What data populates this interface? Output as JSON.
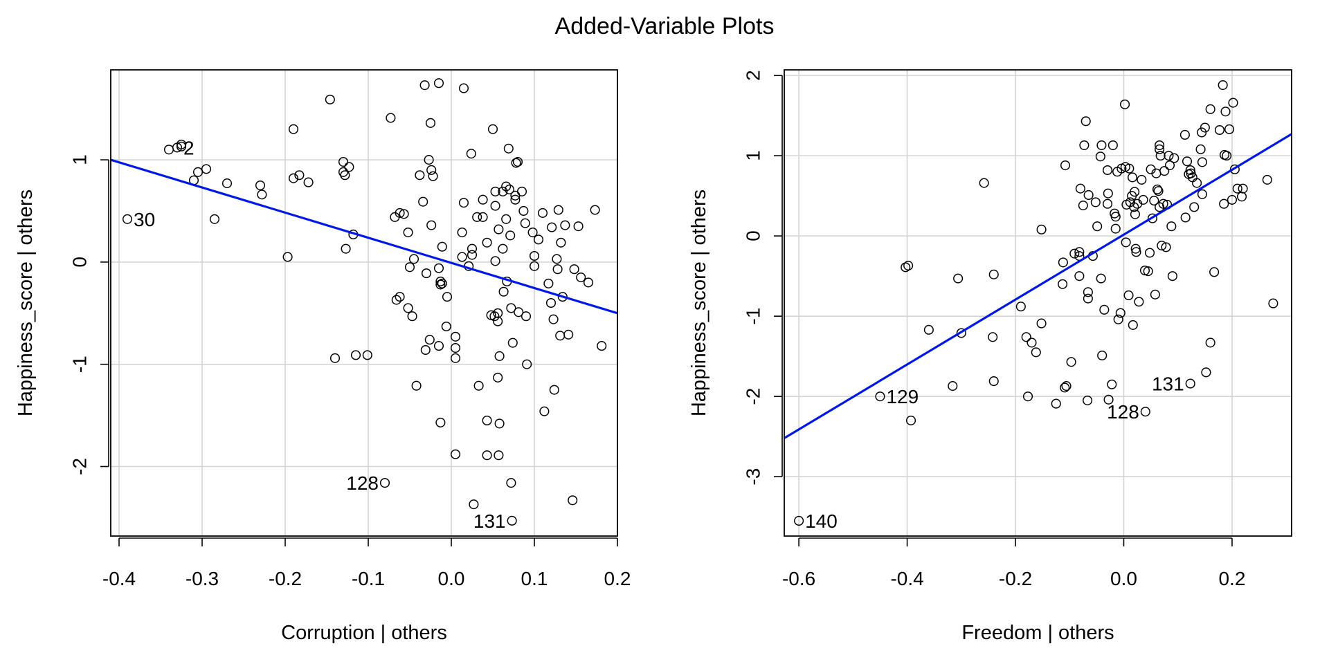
{
  "title": "Added-Variable Plots",
  "colors": {
    "line": "#0019e6",
    "grid": "#d3d3d3",
    "point": "#000000",
    "frame": "#000000"
  },
  "chart_data": [
    {
      "type": "scatter",
      "id": "left",
      "xlabel": "Corruption | others",
      "ylabel": "Happiness_score  | others",
      "xlim": [
        -0.41,
        0.2
      ],
      "ylim": [
        -2.68,
        1.88
      ],
      "xticks": [
        -0.4,
        -0.3,
        -0.2,
        -0.1,
        0.0,
        0.1,
        0.2
      ],
      "xtick_labels": [
        "-0.4",
        "-0.3",
        "-0.2",
        "-0.1",
        "0.0",
        "0.1",
        "0.2"
      ],
      "yticks": [
        -2,
        -1,
        0,
        1
      ],
      "ytick_labels": [
        "-2",
        "-1",
        "0",
        "1"
      ],
      "grid": true,
      "fit_line": {
        "x": [
          -0.41,
          0.2
        ],
        "y": [
          1.0,
          -0.5
        ]
      },
      "labeled_points": [
        {
          "label": "30",
          "x": -0.39,
          "y": 0.42,
          "side": "right"
        },
        {
          "label": "128",
          "x": -0.08,
          "y": -2.16,
          "side": "left"
        },
        {
          "label": "131",
          "x": 0.073,
          "y": -2.53,
          "side": "left"
        },
        {
          "label": "2",
          "x": -0.33,
          "y": 1.12,
          "side": "right"
        }
      ],
      "points": [
        [
          -0.34,
          1.1
        ],
        [
          -0.325,
          1.15
        ],
        [
          -0.325,
          1.13
        ],
        [
          -0.31,
          0.8
        ],
        [
          -0.305,
          0.88
        ],
        [
          -0.295,
          0.91
        ],
        [
          -0.27,
          0.77
        ],
        [
          -0.285,
          0.42
        ],
        [
          -0.23,
          0.75
        ],
        [
          -0.228,
          0.66
        ],
        [
          -0.19,
          1.3
        ],
        [
          -0.19,
          0.82
        ],
        [
          -0.183,
          0.85
        ],
        [
          -0.172,
          0.78
        ],
        [
          -0.197,
          0.05
        ],
        [
          -0.146,
          1.59
        ],
        [
          -0.13,
          0.98
        ],
        [
          -0.13,
          0.88
        ],
        [
          -0.128,
          0.85
        ],
        [
          -0.123,
          0.93
        ],
        [
          -0.118,
          0.27
        ],
        [
          -0.127,
          0.13
        ],
        [
          -0.14,
          -0.94
        ],
        [
          -0.115,
          -0.91
        ],
        [
          -0.101,
          -0.91
        ],
        [
          -0.073,
          1.41
        ],
        [
          -0.068,
          0.44
        ],
        [
          -0.062,
          0.48
        ],
        [
          -0.057,
          0.47
        ],
        [
          -0.066,
          -0.37
        ],
        [
          -0.062,
          -0.34
        ],
        [
          -0.052,
          -0.45
        ],
        [
          -0.047,
          -0.53
        ],
        [
          -0.05,
          -0.05
        ],
        [
          -0.045,
          0.03
        ],
        [
          -0.052,
          0.29
        ],
        [
          -0.038,
          0.85
        ],
        [
          -0.034,
          0.59
        ],
        [
          -0.032,
          1.73
        ],
        [
          -0.027,
          1.0
        ],
        [
          -0.024,
          0.9
        ],
        [
          -0.022,
          0.84
        ],
        [
          -0.025,
          1.36
        ],
        [
          -0.015,
          1.75
        ],
        [
          -0.024,
          0.36
        ],
        [
          -0.03,
          -0.11
        ],
        [
          -0.031,
          -0.86
        ],
        [
          -0.026,
          -0.76
        ],
        [
          -0.042,
          -1.21
        ],
        [
          -0.013,
          -0.19
        ],
        [
          -0.013,
          -0.22
        ],
        [
          -0.011,
          -0.21
        ],
        [
          -0.015,
          -0.06
        ],
        [
          -0.011,
          0.15
        ],
        [
          -0.015,
          -0.82
        ],
        [
          -0.013,
          -1.57
        ],
        [
          -0.005,
          -0.34
        ],
        [
          -0.006,
          -0.63
        ],
        [
          0.005,
          -0.73
        ],
        [
          0.005,
          -0.84
        ],
        [
          0.005,
          -0.94
        ],
        [
          0.005,
          -1.88
        ],
        [
          0.013,
          0.29
        ],
        [
          0.013,
          0.05
        ],
        [
          0.015,
          1.7
        ],
        [
          0.015,
          0.58
        ],
        [
          0.021,
          -0.04
        ],
        [
          0.024,
          1.06
        ],
        [
          0.025,
          0.07
        ],
        [
          0.025,
          0.13
        ],
        [
          0.031,
          0.44
        ],
        [
          0.033,
          -1.21
        ],
        [
          0.027,
          -2.37
        ],
        [
          0.038,
          0.61
        ],
        [
          0.038,
          0.44
        ],
        [
          0.043,
          0.19
        ],
        [
          0.043,
          -1.55
        ],
        [
          0.043,
          -1.89
        ],
        [
          0.048,
          -0.52
        ],
        [
          0.052,
          -0.53
        ],
        [
          0.05,
          1.3
        ],
        [
          0.053,
          0.69
        ],
        [
          0.053,
          0.55
        ],
        [
          0.053,
          0.01
        ],
        [
          0.056,
          -0.5
        ],
        [
          0.056,
          -0.58
        ],
        [
          0.056,
          -1.13
        ],
        [
          0.057,
          0.32
        ],
        [
          0.058,
          -0.92
        ],
        [
          0.058,
          -1.58
        ],
        [
          0.057,
          -1.89
        ],
        [
          0.062,
          0.69
        ],
        [
          0.062,
          0.13
        ],
        [
          0.063,
          -0.29
        ],
        [
          0.066,
          0.74
        ],
        [
          0.066,
          0.42
        ],
        [
          0.067,
          -0.19
        ],
        [
          0.069,
          1.11
        ],
        [
          0.07,
          0.71
        ],
        [
          0.071,
          0.26
        ],
        [
          0.072,
          -0.45
        ],
        [
          0.072,
          -2.16
        ],
        [
          0.074,
          -0.79
        ],
        [
          0.077,
          0.65
        ],
        [
          0.077,
          0.61
        ],
        [
          0.078,
          0.97
        ],
        [
          0.08,
          0.98
        ],
        [
          0.081,
          -0.49
        ],
        [
          0.085,
          0.69
        ],
        [
          0.087,
          0.5
        ],
        [
          0.089,
          0.38
        ],
        [
          0.09,
          -0.53
        ],
        [
          0.091,
          -1.0
        ],
        [
          0.098,
          0.29
        ],
        [
          0.1,
          0.06
        ],
        [
          0.1,
          -0.04
        ],
        [
          0.105,
          0.22
        ],
        [
          0.11,
          0.48
        ],
        [
          0.112,
          -1.46
        ],
        [
          0.117,
          -0.21
        ],
        [
          0.12,
          -0.4
        ],
        [
          0.121,
          0.34
        ],
        [
          0.123,
          -0.56
        ],
        [
          0.124,
          -1.25
        ],
        [
          0.127,
          0.03
        ],
        [
          0.128,
          -0.07
        ],
        [
          0.129,
          0.51
        ],
        [
          0.131,
          -0.72
        ],
        [
          0.132,
          0.19
        ],
        [
          0.134,
          -0.34
        ],
        [
          0.137,
          0.36
        ],
        [
          0.141,
          -0.71
        ],
        [
          0.146,
          -2.33
        ],
        [
          0.148,
          -0.07
        ],
        [
          0.153,
          0.35
        ],
        [
          0.156,
          -0.15
        ],
        [
          0.165,
          -0.2
        ],
        [
          0.173,
          0.51
        ],
        [
          0.181,
          -0.82
        ]
      ]
    },
    {
      "type": "scatter",
      "id": "right",
      "xlabel": "Freedom | others",
      "ylabel": "Happiness_score  | others",
      "xlim": [
        -0.627,
        0.31
      ],
      "ylim": [
        -3.74,
        2.07
      ],
      "xticks": [
        -0.6,
        -0.4,
        -0.2,
        0.0,
        0.2
      ],
      "xtick_labels": [
        "-0.6",
        "-0.4",
        "-0.2",
        "0.0",
        "0.2"
      ],
      "yticks": [
        -3,
        -2,
        -1,
        0,
        1,
        2
      ],
      "ytick_labels": [
        "-3",
        "-2",
        "-1",
        "0",
        "1",
        "2"
      ],
      "grid": true,
      "fit_line": {
        "x": [
          -0.627,
          0.31
        ],
        "y": [
          -2.52,
          1.27
        ]
      },
      "labeled_points": [
        {
          "label": "140",
          "x": -0.6,
          "y": -3.55,
          "side": "right"
        },
        {
          "label": "129",
          "x": -0.45,
          "y": -2.0,
          "side": "right"
        },
        {
          "label": "128",
          "x": 0.04,
          "y": -2.19,
          "side": "left"
        },
        {
          "label": "131",
          "x": 0.123,
          "y": -1.84,
          "side": "left"
        }
      ],
      "points": [
        [
          -0.403,
          -0.39
        ],
        [
          -0.398,
          -0.37
        ],
        [
          -0.393,
          -2.3
        ],
        [
          -0.36,
          -1.17
        ],
        [
          -0.3,
          -1.21
        ],
        [
          -0.306,
          -0.53
        ],
        [
          -0.316,
          -1.87
        ],
        [
          -0.258,
          0.66
        ],
        [
          -0.24,
          -0.48
        ],
        [
          -0.242,
          -1.26
        ],
        [
          -0.24,
          -1.81
        ],
        [
          -0.19,
          -0.88
        ],
        [
          -0.18,
          -1.26
        ],
        [
          -0.177,
          -2.0
        ],
        [
          -0.17,
          -1.33
        ],
        [
          -0.162,
          -1.45
        ],
        [
          -0.152,
          0.08
        ],
        [
          -0.152,
          -1.09
        ],
        [
          -0.125,
          -2.09
        ],
        [
          -0.113,
          -0.6
        ],
        [
          -0.112,
          -0.33
        ],
        [
          -0.109,
          -1.89
        ],
        [
          -0.106,
          -1.87
        ],
        [
          -0.108,
          0.88
        ],
        [
          -0.097,
          -1.57
        ],
        [
          -0.091,
          -0.22
        ],
        [
          -0.082,
          -0.25
        ],
        [
          -0.082,
          -0.2
        ],
        [
          -0.082,
          -0.5
        ],
        [
          -0.08,
          0.59
        ],
        [
          -0.075,
          0.38
        ],
        [
          -0.07,
          1.43
        ],
        [
          -0.073,
          1.13
        ],
        [
          -0.066,
          -0.7
        ],
        [
          -0.066,
          -0.78
        ],
        [
          -0.067,
          -2.05
        ],
        [
          -0.065,
          0.51
        ],
        [
          -0.057,
          -0.25
        ],
        [
          -0.052,
          0.42
        ],
        [
          -0.049,
          0.12
        ],
        [
          -0.043,
          0.99
        ],
        [
          -0.041,
          1.13
        ],
        [
          -0.042,
          -0.53
        ],
        [
          -0.04,
          -1.49
        ],
        [
          -0.036,
          -0.92
        ],
        [
          -0.03,
          0.82
        ],
        [
          -0.03,
          0.4
        ],
        [
          -0.029,
          0.53
        ],
        [
          -0.028,
          -2.04
        ],
        [
          -0.022,
          -1.85
        ],
        [
          -0.02,
          1.13
        ],
        [
          -0.017,
          0.28
        ],
        [
          -0.015,
          0.24
        ],
        [
          -0.015,
          0.09
        ],
        [
          -0.012,
          0.8
        ],
        [
          -0.01,
          -1.04
        ],
        [
          -0.006,
          -0.96
        ],
        [
          -0.004,
          0.84
        ],
        [
          0.002,
          1.64
        ],
        [
          0.003,
          0.86
        ],
        [
          0.004,
          -0.08
        ],
        [
          0.005,
          0.39
        ],
        [
          0.009,
          -0.74
        ],
        [
          0.01,
          0.84
        ],
        [
          0.012,
          0.42
        ],
        [
          0.015,
          0.5
        ],
        [
          0.016,
          0.73
        ],
        [
          0.017,
          -1.11
        ],
        [
          0.019,
          0.36
        ],
        [
          0.02,
          0.55
        ],
        [
          0.021,
          0.27
        ],
        [
          0.022,
          -0.16
        ],
        [
          0.023,
          -0.2
        ],
        [
          0.025,
          0.4
        ],
        [
          0.028,
          -0.82
        ],
        [
          0.033,
          0.7
        ],
        [
          0.036,
          0.45
        ],
        [
          0.039,
          -0.43
        ],
        [
          0.045,
          -0.44
        ],
        [
          0.048,
          -0.21
        ],
        [
          0.05,
          0.83
        ],
        [
          0.053,
          0.22
        ],
        [
          0.056,
          0.44
        ],
        [
          0.058,
          -0.73
        ],
        [
          0.06,
          0.78
        ],
        [
          0.062,
          0.58
        ],
        [
          0.064,
          0.56
        ],
        [
          0.066,
          1.13
        ],
        [
          0.066,
          1.08
        ],
        [
          0.066,
          0.36
        ],
        [
          0.068,
          1.0
        ],
        [
          0.07,
          -0.12
        ],
        [
          0.073,
          0.4
        ],
        [
          0.075,
          0.81
        ],
        [
          0.078,
          -0.14
        ],
        [
          0.08,
          0.39
        ],
        [
          0.083,
          1.0
        ],
        [
          0.085,
          0.88
        ],
        [
          0.088,
          0.12
        ],
        [
          0.09,
          -0.5
        ],
        [
          0.093,
          0.97
        ],
        [
          0.113,
          1.26
        ],
        [
          0.114,
          0.23
        ],
        [
          0.117,
          0.93
        ],
        [
          0.12,
          0.77
        ],
        [
          0.123,
          0.82
        ],
        [
          0.124,
          0.78
        ],
        [
          0.127,
          0.73
        ],
        [
          0.13,
          0.36
        ],
        [
          0.135,
          0.66
        ],
        [
          0.142,
          1.08
        ],
        [
          0.144,
          1.29
        ],
        [
          0.145,
          0.92
        ],
        [
          0.145,
          0.52
        ],
        [
          0.15,
          1.35
        ],
        [
          0.152,
          -1.7
        ],
        [
          0.16,
          1.58
        ],
        [
          0.16,
          -1.33
        ],
        [
          0.167,
          -0.45
        ],
        [
          0.177,
          1.32
        ],
        [
          0.183,
          1.88
        ],
        [
          0.186,
          1.01
        ],
        [
          0.185,
          0.4
        ],
        [
          0.188,
          1.55
        ],
        [
          0.19,
          1.0
        ],
        [
          0.195,
          1.33
        ],
        [
          0.2,
          0.45
        ],
        [
          0.202,
          1.66
        ],
        [
          0.205,
          0.83
        ],
        [
          0.21,
          0.59
        ],
        [
          0.218,
          0.49
        ],
        [
          0.22,
          0.59
        ],
        [
          0.265,
          0.7
        ],
        [
          0.276,
          -0.84
        ]
      ]
    }
  ]
}
